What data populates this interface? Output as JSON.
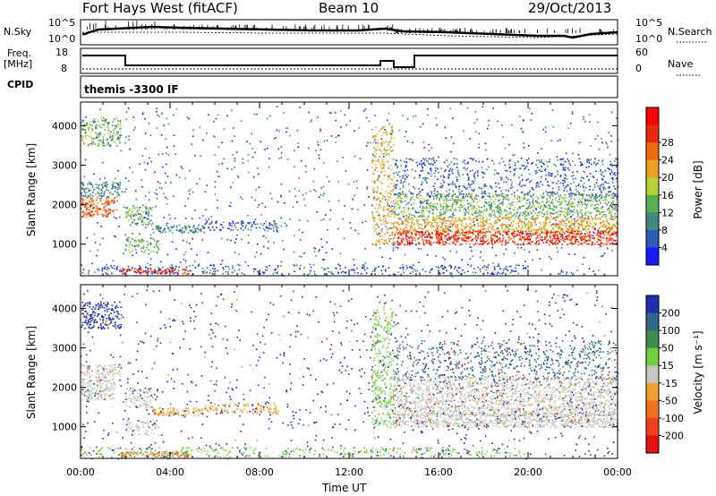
{
  "header": {
    "station": "Fort Hays West (fitACF)",
    "beam": "Beam 10",
    "date": "29/Oct/2013"
  },
  "top_panels": {
    "nsky_label": "N.Sky",
    "nsky_ticks": [
      "10^5",
      "10^0"
    ],
    "nsearch_label": "N.Search",
    "nsearch_ticks": [
      "10^5",
      "10^0"
    ],
    "freq_label_1": "Freq.",
    "freq_label_2": "[MHz]",
    "freq_ticks": [
      "18",
      "8"
    ],
    "nave_label": "Nave",
    "nave_ticks": [
      "60",
      "0"
    ],
    "cpid_label": "CPID",
    "cpid_value": "themis -3300 IF"
  },
  "chart_data": [
    {
      "type": "heatmap",
      "name": "power-panel",
      "ylabel": "Slant Range [km]",
      "yticks": [
        1000,
        2000,
        3000,
        4000
      ],
      "ylim": [
        200,
        4600
      ],
      "xlim_hours": [
        0,
        24
      ],
      "colorbar": {
        "label": "Power [dB]",
        "ticks": [
          "4",
          "8",
          "12",
          "16",
          "20",
          "24",
          "28"
        ],
        "colors": [
          "#1a1aff",
          "#2e5bb5",
          "#3f8a7a",
          "#55b04d",
          "#b7d238",
          "#f0a020",
          "#f06a10",
          "#e62a10",
          "#ff0000"
        ]
      }
    },
    {
      "type": "heatmap",
      "name": "velocity-panel",
      "ylabel": "Slant Range [km]",
      "yticks": [
        1000,
        2000,
        3000,
        4000
      ],
      "ylim": [
        200,
        4600
      ],
      "xlim_hours": [
        0,
        24
      ],
      "colorbar": {
        "label": "Velocity [m s⁻¹]",
        "ticks": [
          "200",
          "100",
          "50",
          "15",
          "-15",
          "-50",
          "-100",
          "-200"
        ],
        "colors": [
          "#1e2fb0",
          "#2f6a88",
          "#3f8c4c",
          "#6fd040",
          "#c8c8c0",
          "#f0a030",
          "#f07020",
          "#f04020",
          "#e81010"
        ]
      }
    }
  ],
  "xaxis": {
    "ticks": [
      "00:00",
      "04:00",
      "08:00",
      "12:00",
      "16:00",
      "20:00",
      "00:00"
    ],
    "label": "Time UT"
  }
}
